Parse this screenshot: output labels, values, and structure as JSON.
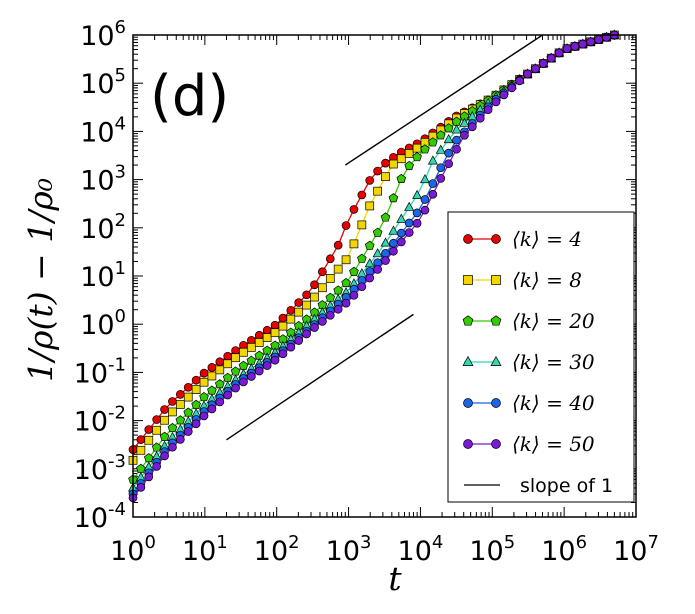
{
  "chart_data": {
    "type": "line",
    "panel_label": "(d)",
    "xlabel": "t",
    "ylabel": "1/ρ(t) − 1/ρ₀",
    "xscale": "log",
    "yscale": "log",
    "xlim": [
      1,
      10000000
    ],
    "ylim": [
      0.0001,
      1000000
    ],
    "x_ticks": [
      {
        "base": "10",
        "exp": "0"
      },
      {
        "base": "10",
        "exp": "1"
      },
      {
        "base": "10",
        "exp": "2"
      },
      {
        "base": "10",
        "exp": "3"
      },
      {
        "base": "10",
        "exp": "4"
      },
      {
        "base": "10",
        "exp": "5"
      },
      {
        "base": "10",
        "exp": "6"
      },
      {
        "base": "10",
        "exp": "7"
      }
    ],
    "y_ticks": [
      {
        "base": "10",
        "exp": "-4"
      },
      {
        "base": "10",
        "exp": "-3"
      },
      {
        "base": "10",
        "exp": "-2"
      },
      {
        "base": "10",
        "exp": "-1"
      },
      {
        "base": "10",
        "exp": "0"
      },
      {
        "base": "10",
        "exp": "1"
      },
      {
        "base": "10",
        "exp": "2"
      },
      {
        "base": "10",
        "exp": "3"
      },
      {
        "base": "10",
        "exp": "4"
      },
      {
        "base": "10",
        "exp": "5"
      },
      {
        "base": "10",
        "exp": "6"
      }
    ],
    "legend_position": "lower right",
    "series": [
      {
        "name": "⟨k⟩ = 4",
        "k": "4",
        "color": "#e60000",
        "marker": "circle",
        "x": [
          1,
          3,
          10,
          30,
          100,
          300,
          700,
          1000,
          2000,
          3000,
          5000,
          10000,
          30000,
          100000,
          300000,
          1000000,
          5000000
        ],
        "y": [
          0.0025,
          0.02,
          0.1,
          0.32,
          1,
          5,
          40,
          150,
          1000,
          2000,
          3500,
          6000,
          20000,
          50000,
          150000,
          500000,
          1000000
        ]
      },
      {
        "name": "⟨k⟩ = 8",
        "k": "8",
        "color": "#f2d600",
        "marker": "square",
        "x": [
          1,
          3,
          10,
          30,
          100,
          300,
          1000,
          2000,
          4000,
          10000,
          30000,
          100000,
          300000,
          1000000,
          5000000
        ],
        "y": [
          0.0015,
          0.012,
          0.065,
          0.23,
          0.7,
          3,
          25,
          300,
          2000,
          5000,
          18000,
          50000,
          150000,
          500000,
          1000000
        ]
      },
      {
        "name": "⟨k⟩ = 20",
        "k": "20",
        "color": "#33cc00",
        "marker": "pentagon",
        "x": [
          1,
          3,
          10,
          30,
          100,
          300,
          1000,
          3000,
          6000,
          10000,
          30000,
          100000,
          300000,
          1000000,
          5000000
        ],
        "y": [
          0.0006,
          0.0055,
          0.032,
          0.12,
          0.38,
          1.5,
          8,
          120,
          1500,
          3500,
          15000,
          50000,
          150000,
          500000,
          1000000
        ]
      },
      {
        "name": "⟨k⟩ = 30",
        "k": "30",
        "color": "#33d6b0",
        "marker": "triangle",
        "x": [
          1,
          3,
          10,
          30,
          100,
          300,
          1000,
          3000,
          10000,
          15000,
          30000,
          100000,
          300000,
          1000000,
          5000000
        ],
        "y": [
          0.0004,
          0.0035,
          0.021,
          0.08,
          0.27,
          1.1,
          5,
          40,
          600,
          2500,
          10000,
          45000,
          150000,
          500000,
          1000000
        ]
      },
      {
        "name": "⟨k⟩ = 40",
        "k": "40",
        "color": "#1a66e6",
        "marker": "circle",
        "x": [
          1,
          3,
          10,
          30,
          100,
          300,
          1000,
          3000,
          10000,
          20000,
          30000,
          100000,
          300000,
          1000000,
          5000000
        ],
        "y": [
          0.0003,
          0.0027,
          0.016,
          0.065,
          0.22,
          0.85,
          4,
          25,
          250,
          2000,
          6000,
          40000,
          150000,
          500000,
          1000000
        ]
      },
      {
        "name": "⟨k⟩ = 50",
        "k": "50",
        "color": "#7a1ad6",
        "marker": "circle",
        "x": [
          1,
          3,
          10,
          30,
          100,
          300,
          1000,
          3000,
          10000,
          20000,
          40000,
          100000,
          300000,
          1000000,
          5000000
        ],
        "y": [
          0.00025,
          0.0022,
          0.013,
          0.055,
          0.19,
          0.75,
          3,
          18,
          150,
          1200,
          8000,
          35000,
          150000,
          500000,
          1000000
        ]
      }
    ],
    "reference_lines": [
      {
        "name": "slope of 1",
        "x": [
          20,
          8000
        ],
        "y": [
          0.004,
          1.6
        ]
      },
      {
        "name": "slope of 1",
        "x": [
          900,
          500000
        ],
        "y": [
          2000,
          1000000
        ]
      }
    ]
  }
}
